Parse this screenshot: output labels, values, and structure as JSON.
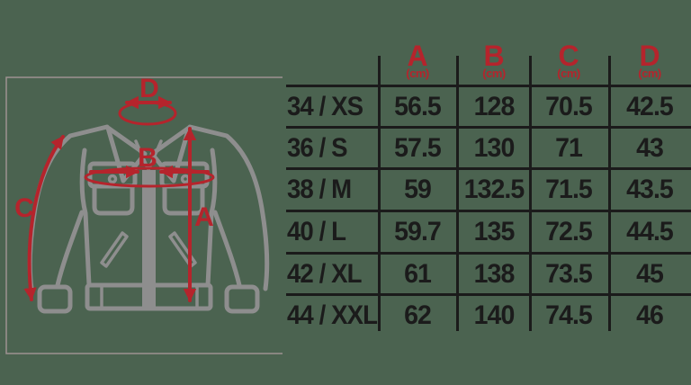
{
  "colors": {
    "background": "#4b6350",
    "accent_red": "#b5242c",
    "table_ink": "#1b1b1b",
    "jacket_gray": "#8e8e8e",
    "frame_gray": "#9e9191"
  },
  "diagram": {
    "measurement_labels": {
      "a": "A",
      "b": "B",
      "c": "C",
      "d": "D"
    }
  },
  "table": {
    "header": [
      {
        "letter": "A",
        "unit": "(cm)"
      },
      {
        "letter": "B",
        "unit": "(cm)"
      },
      {
        "letter": "C",
        "unit": "(cm)"
      },
      {
        "letter": "D",
        "unit": "(cm)"
      }
    ],
    "rows": [
      {
        "size": "34 / XS",
        "values": [
          "56.5",
          "128",
          "70.5",
          "42.5"
        ]
      },
      {
        "size": "36 / S",
        "values": [
          "57.5",
          "130",
          "71",
          "43"
        ]
      },
      {
        "size": "38 / M",
        "values": [
          "59",
          "132.5",
          "71.5",
          "43.5"
        ]
      },
      {
        "size": "40 / L",
        "values": [
          "59.7",
          "135",
          "72.5",
          "44.5"
        ]
      },
      {
        "size": "42 / XL",
        "values": [
          "61",
          "138",
          "73.5",
          "45"
        ]
      },
      {
        "size": "44 / XXL",
        "values": [
          "62",
          "140",
          "74.5",
          "46"
        ]
      }
    ]
  }
}
